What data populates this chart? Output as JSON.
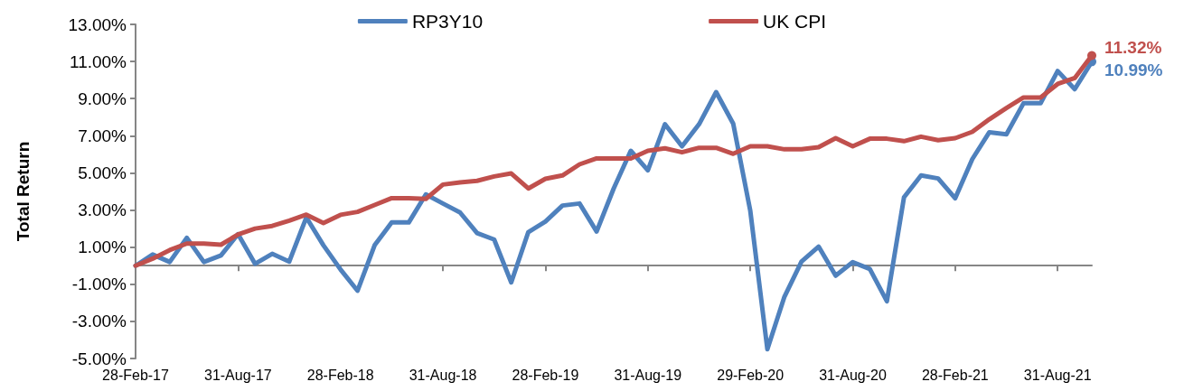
{
  "chart_data": {
    "type": "line",
    "ylabel": "Total Return",
    "categories": [
      "28-Feb-17",
      null,
      null,
      null,
      null,
      null,
      "31-Aug-17",
      null,
      null,
      null,
      null,
      null,
      "28-Feb-18",
      null,
      null,
      null,
      null,
      null,
      "31-Aug-18",
      null,
      null,
      null,
      null,
      null,
      "28-Feb-19",
      null,
      null,
      null,
      null,
      null,
      "31-Aug-19",
      null,
      null,
      null,
      null,
      null,
      "29-Feb-20",
      null,
      null,
      null,
      null,
      null,
      "31-Aug-20",
      null,
      null,
      null,
      null,
      null,
      "28-Feb-21",
      null,
      null,
      null,
      null,
      null,
      "31-Aug-21",
      null,
      null
    ],
    "series": [
      {
        "name": "RP3Y10",
        "color": "#4f81bd",
        "values": [
          0.0,
          0.6,
          0.2,
          1.5,
          0.2,
          0.55,
          1.7,
          0.1,
          0.64,
          0.22,
          2.6,
          1.1,
          -0.2,
          -1.35,
          1.1,
          2.33,
          2.33,
          3.84,
          3.35,
          2.87,
          1.76,
          1.41,
          -0.9,
          1.81,
          2.38,
          3.24,
          3.35,
          1.84,
          4.16,
          6.19,
          5.14,
          7.62,
          6.43,
          7.62,
          9.35,
          7.65,
          2.95,
          -4.5,
          -1.67,
          0.22,
          1.03,
          -0.54,
          0.19,
          -0.18,
          -1.92,
          3.68,
          4.86,
          4.7,
          3.63,
          5.74,
          7.19,
          7.08,
          8.75,
          8.75,
          10.49,
          9.51,
          10.99
        ],
        "value_labels": [
          null,
          null,
          null,
          null,
          null,
          null,
          null,
          null,
          null,
          null,
          null,
          null,
          null,
          null,
          null,
          null,
          null,
          null,
          null,
          null,
          null,
          null,
          null,
          null,
          null,
          null,
          null,
          null,
          null,
          null,
          null,
          null,
          null,
          null,
          null,
          null,
          null,
          null,
          null,
          null,
          null,
          null,
          null,
          null,
          null,
          null,
          null,
          null,
          null,
          null,
          null,
          null,
          null,
          null,
          null,
          null,
          "10.99%"
        ]
      },
      {
        "name": "UK CPI",
        "color": "#c0504d",
        "values": [
          0.0,
          0.38,
          0.84,
          1.19,
          1.19,
          1.13,
          1.68,
          2.0,
          2.14,
          2.43,
          2.75,
          2.3,
          2.74,
          2.9,
          3.27,
          3.64,
          3.64,
          3.6,
          4.37,
          4.49,
          4.57,
          4.81,
          4.97,
          4.16,
          4.68,
          4.86,
          5.46,
          5.78,
          5.78,
          5.78,
          6.19,
          6.32,
          6.11,
          6.35,
          6.35,
          6.03,
          6.43,
          6.43,
          6.27,
          6.27,
          6.38,
          6.87,
          6.43,
          6.84,
          6.84,
          6.71,
          6.95,
          6.76,
          6.87,
          7.21,
          7.89,
          8.49,
          9.06,
          9.06,
          9.79,
          10.11,
          11.32
        ],
        "value_labels": [
          null,
          null,
          null,
          null,
          null,
          null,
          null,
          null,
          null,
          null,
          null,
          null,
          null,
          null,
          null,
          null,
          null,
          null,
          null,
          null,
          null,
          null,
          null,
          null,
          null,
          null,
          null,
          null,
          null,
          null,
          null,
          null,
          null,
          null,
          null,
          null,
          null,
          null,
          null,
          null,
          null,
          null,
          null,
          null,
          null,
          null,
          null,
          null,
          null,
          null,
          null,
          null,
          null,
          null,
          null,
          null,
          "11.32%"
        ]
      }
    ],
    "ylim": [
      -5,
      13
    ],
    "yticks": [
      {
        "value": -5,
        "label": "-5.00%"
      },
      {
        "value": -3,
        "label": "-3.00%"
      },
      {
        "value": -1,
        "label": "-1.00%"
      },
      {
        "value": 1,
        "label": "1.00%"
      },
      {
        "value": 3,
        "label": "3.00%"
      },
      {
        "value": 5,
        "label": "5.00%"
      },
      {
        "value": 7,
        "label": "7.00%"
      },
      {
        "value": 9,
        "label": "9.00%"
      },
      {
        "value": 11,
        "label": "11.00%"
      },
      {
        "value": 13,
        "label": "13.00%"
      }
    ],
    "grid": false,
    "legend": "top",
    "line_style": "solid"
  }
}
